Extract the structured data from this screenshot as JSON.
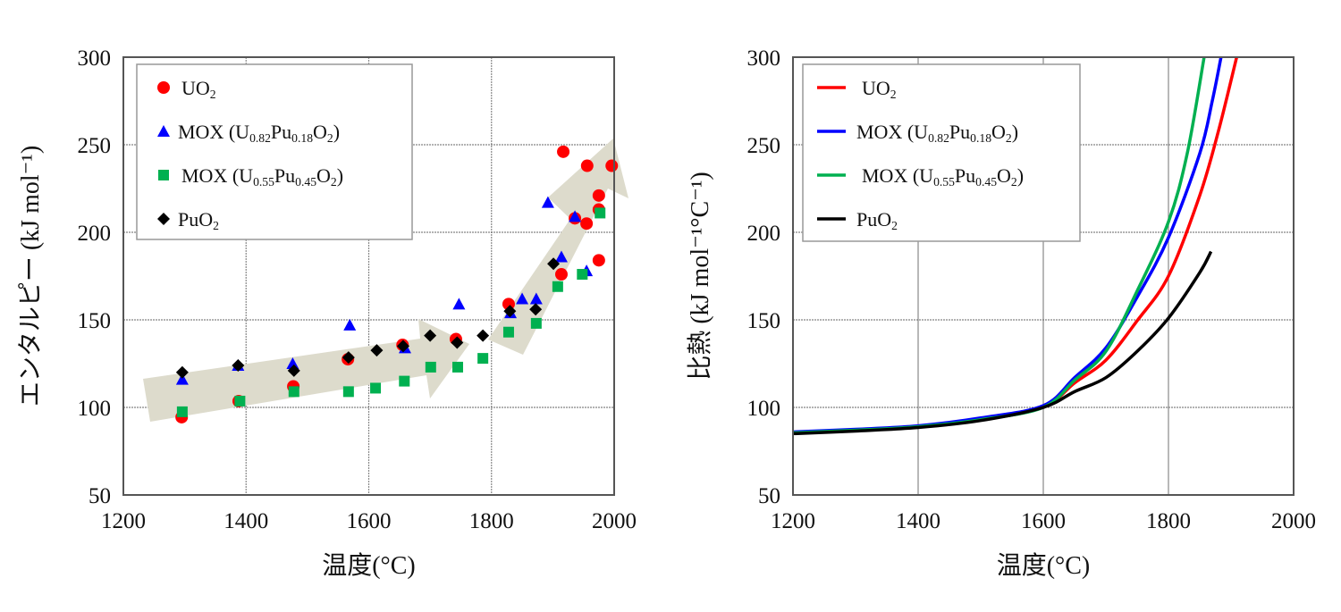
{
  "chart_data": [
    {
      "type": "scatter",
      "xlabel": "温度(°C)",
      "ylabel": "エンタルピー (kJ mol⁻¹)",
      "xlim": [
        1200,
        2000
      ],
      "ylim": [
        50,
        300
      ],
      "xticks": [
        1200,
        1400,
        1600,
        1800,
        2000
      ],
      "yticks": [
        50,
        100,
        150,
        200,
        250,
        300
      ],
      "grid": true,
      "legend_position": "top-left",
      "annotations": [
        "trend-arrow-low-temperature",
        "trend-arrow-high-temperature"
      ],
      "arrow_color": "#dddbcc",
      "series": [
        {
          "name_parts": [
            {
              "t": "UO"
            },
            {
              "t": "2",
              "sub": true
            }
          ],
          "marker": "circle",
          "color": "#ff0000",
          "x": [
            1295,
            1388,
            1477,
            1566,
            1655,
            1742,
            1828,
            1914,
            1917,
            1936,
            1955,
            1956,
            1975,
            1975,
            1975,
            1996
          ],
          "y": [
            94.4,
            103.6,
            112,
            127.5,
            135.7,
            139,
            159,
            176,
            246,
            208,
            205,
            238,
            221,
            213,
            184,
            238
          ]
        },
        {
          "name_parts": [
            {
              "t": "MOX (U"
            },
            {
              "t": "0.82",
              "sub": true
            },
            {
              "t": "Pu"
            },
            {
              "t": "0.18",
              "sub": true
            },
            {
              "t": "O"
            },
            {
              "t": "2",
              "sub": true
            },
            {
              "t": ")"
            }
          ],
          "marker": "triangle",
          "color": "#0000ff",
          "x": [
            1296,
            1387,
            1476,
            1569,
            1659,
            1747,
            1831,
            1850,
            1873,
            1892,
            1914,
            1936,
            1955
          ],
          "y": [
            116,
            124,
            125,
            147,
            134,
            159,
            154,
            162,
            162,
            217,
            186,
            209,
            178
          ]
        },
        {
          "name_parts": [
            {
              "t": "MOX (U"
            },
            {
              "t": "0.55",
              "sub": true
            },
            {
              "t": "Pu"
            },
            {
              "t": "0.45",
              "sub": true
            },
            {
              "t": "O"
            },
            {
              "t": "2",
              "sub": true
            },
            {
              "t": ")"
            }
          ],
          "marker": "square",
          "color": "#00b050",
          "x": [
            1296,
            1390,
            1478,
            1567,
            1611,
            1658,
            1701,
            1745,
            1786,
            1828,
            1873,
            1908,
            1948,
            1977
          ],
          "y": [
            97.5,
            103.6,
            109,
            109,
            111,
            115,
            123,
            123,
            128,
            143,
            148,
            169,
            176,
            211
          ]
        },
        {
          "name_parts": [
            {
              "t": "PuO"
            },
            {
              "t": "2",
              "sub": true
            }
          ],
          "marker": "diamond",
          "color": "#000000",
          "x": [
            1296,
            1387,
            1478,
            1567,
            1613,
            1656,
            1700,
            1744,
            1786,
            1830,
            1872,
            1901
          ],
          "y": [
            120,
            124,
            121,
            128.5,
            132.6,
            135,
            141,
            137,
            141,
            155,
            156,
            182
          ]
        }
      ]
    },
    {
      "type": "line",
      "xlabel": "温度(°C)",
      "ylabel": "比熱 (kJ mol⁻¹°C⁻¹)",
      "xlim": [
        1200,
        2000
      ],
      "ylim": [
        50,
        300
      ],
      "xticks": [
        1200,
        1400,
        1600,
        1800,
        2000
      ],
      "yticks": [
        50,
        100,
        150,
        200,
        250,
        300
      ],
      "grid": true,
      "legend_position": "top-left",
      "series": [
        {
          "name_parts": [
            {
              "t": "UO"
            },
            {
              "t": "2",
              "sub": true
            }
          ],
          "color": "#ff0000",
          "x": [
            1200,
            1300,
            1400,
            1500,
            1600,
            1650,
            1700,
            1750,
            1800,
            1850,
            1880,
            1909
          ],
          "y": [
            85.5,
            87,
            89,
            93,
            100,
            114,
            127,
            149.5,
            175,
            221,
            258,
            300
          ]
        },
        {
          "name_parts": [
            {
              "t": "MOX (U"
            },
            {
              "t": "0.82",
              "sub": true
            },
            {
              "t": "Pu"
            },
            {
              "t": "0.18",
              "sub": true
            },
            {
              "t": "O"
            },
            {
              "t": "2",
              "sub": true
            },
            {
              "t": ")"
            }
          ],
          "color": "#0000ff",
          "x": [
            1200,
            1300,
            1400,
            1500,
            1600,
            1650,
            1700,
            1750,
            1800,
            1850,
            1870,
            1884
          ],
          "y": [
            86,
            87.5,
            89.5,
            94,
            101,
            117,
            134,
            163,
            197,
            245,
            275,
            300
          ]
        },
        {
          "name_parts": [
            {
              "t": "MOX (U"
            },
            {
              "t": "0.55",
              "sub": true
            },
            {
              "t": "Pu"
            },
            {
              "t": "0.45",
              "sub": true
            },
            {
              "t": "O"
            },
            {
              "t": "2",
              "sub": true
            },
            {
              "t": ")"
            }
          ],
          "color": "#00b050",
          "x": [
            1200,
            1300,
            1400,
            1500,
            1600,
            1650,
            1700,
            1750,
            1800,
            1830,
            1857
          ],
          "y": [
            85.5,
            87,
            89,
            93,
            100,
            115.5,
            132,
            166.5,
            206,
            245,
            300
          ]
        },
        {
          "name_parts": [
            {
              "t": "PuO"
            },
            {
              "t": "2",
              "sub": true
            }
          ],
          "color": "#000000",
          "x": [
            1200,
            1300,
            1400,
            1500,
            1600,
            1650,
            1700,
            1750,
            1800,
            1850,
            1868
          ],
          "y": [
            85,
            86.5,
            88.5,
            92.5,
            100,
            109,
            117,
            132,
            151,
            177,
            189
          ]
        }
      ]
    }
  ]
}
